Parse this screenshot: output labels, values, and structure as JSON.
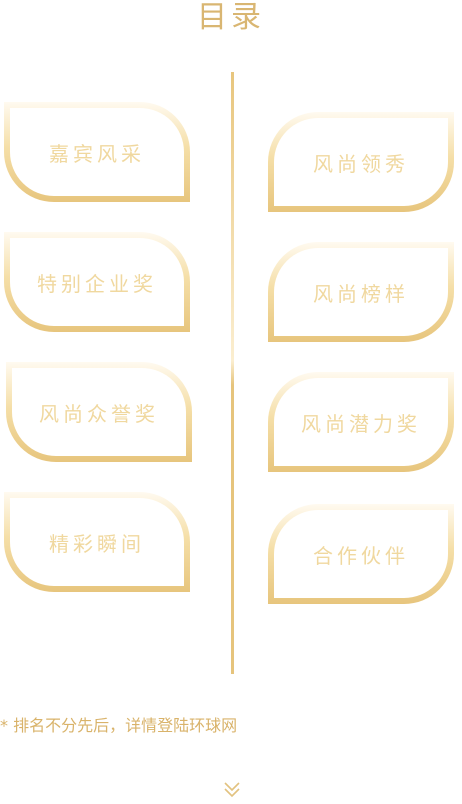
{
  "page": {
    "title": "目录",
    "footnote": "* 排名不分先后，详情登陆环球网"
  },
  "left_cards": [
    {
      "label": "嘉宾风采"
    },
    {
      "label": "特别企业奖"
    },
    {
      "label": "风尚众誉奖"
    },
    {
      "label": "精彩瞬间"
    }
  ],
  "right_cards": [
    {
      "label": "风尚领秀"
    },
    {
      "label": "风尚榜样"
    },
    {
      "label": "风尚潜力奖"
    },
    {
      "label": "合作伙伴"
    }
  ],
  "icons": {
    "scroll_down": "chevron-down-double-icon"
  },
  "colors": {
    "gold_dark": "#e6c47c",
    "gold_light": "#fbeed0",
    "label": "#f0d89f",
    "title": "#d9b672"
  }
}
